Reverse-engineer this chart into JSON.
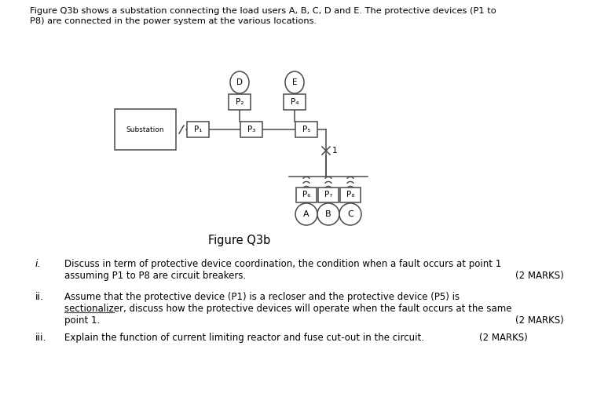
{
  "title_line1": "Figure Q3b shows a substation connecting the load users A, B, C, D and E. The protective devices (P1 to",
  "title_line2": "P8) are connected in the power system at the various locations.",
  "figure_label": "Figure Q3b",
  "q1_num": "i.",
  "q1_line1": "Discuss in term of protective device coordination, the condition when a fault occurs at point 1",
  "q1_line2": "assuming P1 to P8 are circuit breakers.",
  "q1_marks": "(2 MARKS)",
  "q2_num": "ii.",
  "q2_line1": "Assume that the protective device (P1) is a recloser and the protective device (P5) is",
  "q2_line2": "sectionalizer, discuss how the protective devices will operate when the fault occurs at the same",
  "q2_line3": "point 1.",
  "q2_marks": "(2 MARKS)",
  "q3_num": "iii.",
  "q3_line1": "Explain the function of current limiting reactor and fuse cut-out in the circuit.",
  "q3_marks": "(2 MARKS)",
  "bg_color": "#ffffff",
  "line_color": "#4a4a4a",
  "text_color": "#000000"
}
